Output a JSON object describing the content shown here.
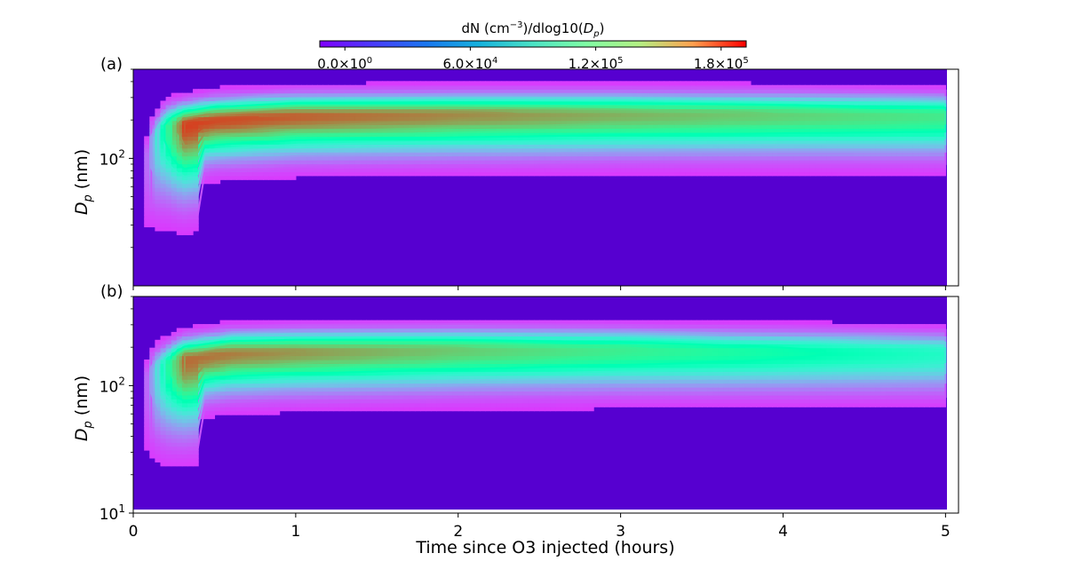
{
  "chart_data": [
    {
      "type": "heatmap",
      "panel_label": "(a)",
      "ylabel": "D_p (nm)",
      "ylabel_main": "D",
      "ylabel_sub": "p",
      "ylabel_unit": " (nm)",
      "y_scale": "log",
      "ylim": [
        10,
        500
      ],
      "yticks": [
        {
          "value": 100,
          "label": "10",
          "exp": "2"
        }
      ],
      "xlim": [
        0,
        5.08
      ],
      "x_tick_labels_shown": false,
      "ridge_center_nm": [
        [
          0.08,
          100
        ],
        [
          0.12,
          140
        ],
        [
          0.2,
          175
        ],
        [
          0.5,
          200
        ],
        [
          1,
          215
        ],
        [
          2,
          220
        ],
        [
          3,
          222
        ],
        [
          4,
          220
        ],
        [
          5,
          215
        ]
      ],
      "peak_value": 180000,
      "contour_levels": [
        10000,
        30000,
        50000,
        70000,
        90000,
        110000,
        130000,
        150000,
        170000
      ]
    },
    {
      "type": "heatmap",
      "panel_label": "(b)",
      "ylabel": "D_p (nm)",
      "ylabel_main": "D",
      "ylabel_sub": "p",
      "ylabel_unit": " (nm)",
      "y_scale": "log",
      "ylim": [
        10,
        500
      ],
      "yticks": [
        {
          "value": 10,
          "label": "10",
          "exp": "1"
        },
        {
          "value": 100,
          "label": "10",
          "exp": "2"
        }
      ],
      "xlim": [
        0,
        5.08
      ],
      "xlabel": "Time since O3 injected (hours)",
      "xticks": [
        0,
        1,
        2,
        3,
        4,
        5
      ],
      "ridge_center_nm": [
        [
          0.08,
          110
        ],
        [
          0.12,
          130
        ],
        [
          0.3,
          160
        ],
        [
          0.6,
          180
        ],
        [
          1,
          185
        ],
        [
          2,
          190
        ],
        [
          3,
          190
        ],
        [
          4,
          185
        ],
        [
          5,
          180
        ]
      ],
      "peak_value": 170000,
      "contour_levels": [
        10000,
        30000,
        50000,
        70000,
        90000,
        110000,
        130000,
        150000,
        170000
      ]
    }
  ],
  "colorbar": {
    "title_prefix": "dN (cm",
    "title_exp": "−3",
    "title_mid": ")/dlog10(",
    "title_var": "D",
    "title_sub": "p",
    "title_suffix": ")",
    "vmin": -12000,
    "vmax": 192000,
    "colormap": "rainbow",
    "ticks": [
      {
        "value": 0,
        "mantissa": "0.0",
        "exp": "0"
      },
      {
        "value": 60000,
        "mantissa": "6.0",
        "exp": "4"
      },
      {
        "value": 120000,
        "mantissa": "1.2",
        "exp": "5"
      },
      {
        "value": 180000,
        "mantissa": "1.8",
        "exp": "5"
      }
    ]
  },
  "colors": {
    "background_fill": "#5600d0",
    "contour_line": "#2b8cff"
  }
}
